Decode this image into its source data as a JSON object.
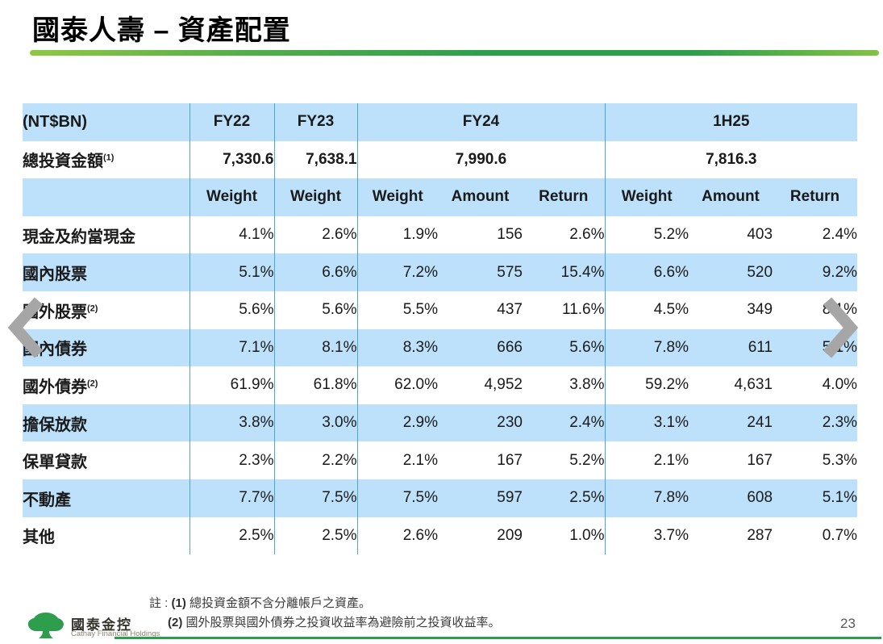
{
  "slide": {
    "title": "國泰人壽 – 資產配置",
    "page_number": "23"
  },
  "table": {
    "unit_label": "(NT$BN)",
    "columns": {
      "fy22": "FY22",
      "fy23": "FY23",
      "fy24": "FY24",
      "h125": "1H25"
    },
    "sub_columns": {
      "weight": "Weight",
      "amount": "Amount",
      "return": "Return"
    },
    "total_row": {
      "label": "總投資金額",
      "footnote_ref": "(1)",
      "fy22": "7,330.6",
      "fy23": "7,638.1",
      "fy24": "7,990.6",
      "h125": "7,816.3"
    },
    "rows": [
      {
        "label": "現金及約當現金",
        "footnote_ref": "",
        "fy22_weight": "4.1%",
        "fy23_weight": "2.6%",
        "fy24_weight": "1.9%",
        "fy24_amount": "156",
        "fy24_return": "2.6%",
        "h125_weight": "5.2%",
        "h125_amount": "403",
        "h125_return": "2.4%"
      },
      {
        "label": "國內股票",
        "footnote_ref": "",
        "fy22_weight": "5.1%",
        "fy23_weight": "6.6%",
        "fy24_weight": "7.2%",
        "fy24_amount": "575",
        "fy24_return": "15.4%",
        "h125_weight": "6.6%",
        "h125_amount": "520",
        "h125_return": "9.2%"
      },
      {
        "label": "國外股票",
        "footnote_ref": "(2)",
        "fy22_weight": "5.6%",
        "fy23_weight": "5.6%",
        "fy24_weight": "5.5%",
        "fy24_amount": "437",
        "fy24_return": "11.6%",
        "h125_weight": "4.5%",
        "h125_amount": "349",
        "h125_return": "8.1%"
      },
      {
        "label": "國內債券",
        "footnote_ref": "",
        "fy22_weight": "7.1%",
        "fy23_weight": "8.1%",
        "fy24_weight": "8.3%",
        "fy24_amount": "666",
        "fy24_return": "5.6%",
        "h125_weight": "7.8%",
        "h125_amount": "611",
        "h125_return": "5.1%"
      },
      {
        "label": "國外債券",
        "footnote_ref": "(2)",
        "fy22_weight": "61.9%",
        "fy23_weight": "61.8%",
        "fy24_weight": "62.0%",
        "fy24_amount": "4,952",
        "fy24_return": "3.8%",
        "h125_weight": "59.2%",
        "h125_amount": "4,631",
        "h125_return": "4.0%"
      },
      {
        "label": "擔保放款",
        "footnote_ref": "",
        "fy22_weight": "3.8%",
        "fy23_weight": "3.0%",
        "fy24_weight": "2.9%",
        "fy24_amount": "230",
        "fy24_return": "2.4%",
        "h125_weight": "3.1%",
        "h125_amount": "241",
        "h125_return": "2.3%"
      },
      {
        "label": "保單貸款",
        "footnote_ref": "",
        "fy22_weight": "2.3%",
        "fy23_weight": "2.2%",
        "fy24_weight": "2.1%",
        "fy24_amount": "167",
        "fy24_return": "5.2%",
        "h125_weight": "2.1%",
        "h125_amount": "167",
        "h125_return": "5.3%"
      },
      {
        "label": "不動產",
        "footnote_ref": "",
        "fy22_weight": "7.7%",
        "fy23_weight": "7.5%",
        "fy24_weight": "7.5%",
        "fy24_amount": "597",
        "fy24_return": "2.5%",
        "h125_weight": "7.8%",
        "h125_amount": "608",
        "h125_return": "5.1%"
      },
      {
        "label": "其他",
        "footnote_ref": "",
        "fy22_weight": "2.5%",
        "fy23_weight": "2.5%",
        "fy24_weight": "2.6%",
        "fy24_amount": "209",
        "fy24_return": "1.0%",
        "h125_weight": "3.7%",
        "h125_amount": "287",
        "h125_return": "0.7%"
      }
    ]
  },
  "notes": {
    "prefix": "註 :",
    "items": [
      {
        "marker": "(1)",
        "text": "總投資金額不含分離帳戶之資產。"
      },
      {
        "marker": "(2)",
        "text": "國外股票與國外債券之投資收益率為避險前之投資收益率。"
      }
    ]
  },
  "footer": {
    "logo_name_zh": "國泰金控",
    "logo_name_en": "Cathay Financial Holdings"
  },
  "colors": {
    "band_blue": "#BDE1FA",
    "divider_blue": "#4FA3DB",
    "title_underline_green_light": "#8FC843",
    "title_underline_green_dark": "#2B9F4B",
    "footer_line_green": "#2AA04E",
    "logo_green": "#2F9E4C",
    "arrow_gray": "#A6A6A6",
    "page_number_gray": "#595959"
  }
}
